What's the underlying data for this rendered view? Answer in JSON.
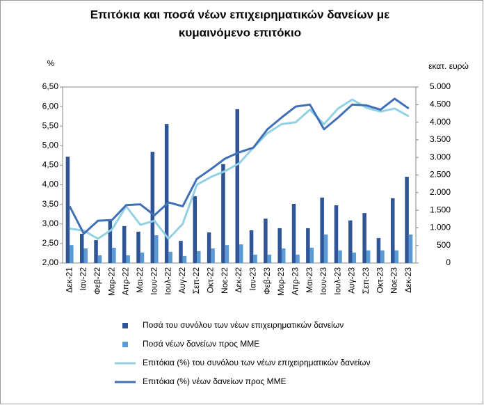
{
  "chart_data": {
    "type": "combo",
    "title": [
      "Επιτόκια και ποσά νέων επιχειρηματικών δανείων με",
      "κυμαινόμενο επιτόκιο"
    ],
    "y_label": "%",
    "y2_label": "εκατ. ευρώ",
    "categories": [
      "Δεκ-21",
      "Ιαν-22",
      "Φεβ-22",
      "Μαρ-22",
      "Απρ-22",
      "Μαι-22",
      "Ιουν-22",
      "Ιουλ-22",
      "Αυγ-22",
      "Σεπ-22",
      "Οκτ-22",
      "Νοε-22",
      "Δεκ-22",
      "Ιαν-23",
      "Φεβ-23",
      "Μαρ-23",
      "Απρ-23",
      "Μαι-23",
      "Ιουν-23",
      "Ιουλ-23",
      "Αυγ-23",
      "Σεπ-23",
      "Οκτ-23",
      "Νοε-23",
      "Δεκ-23"
    ],
    "ylim": [
      2,
      6.5
    ],
    "yticks": [
      {
        "value": 2,
        "label": "2,00"
      },
      {
        "value": 2.5,
        "label": "2,50"
      },
      {
        "value": 3,
        "label": "3,00"
      },
      {
        "value": 3.5,
        "label": "3,50"
      },
      {
        "value": 4,
        "label": "4,00"
      },
      {
        "value": 4.5,
        "label": "4,50"
      },
      {
        "value": 5,
        "label": "5,00"
      },
      {
        "value": 5.5,
        "label": "5,50"
      },
      {
        "value": 6,
        "label": "6,00"
      },
      {
        "value": 6.5,
        "label": "6,50"
      }
    ],
    "y2lim": [
      0,
      5000
    ],
    "y2ticks": [
      0,
      500,
      {
        "value": 1000,
        "label": "1.000"
      },
      {
        "value": 1500,
        "label": "1.500"
      },
      {
        "value": 2000,
        "label": "2.000"
      },
      {
        "value": 2500,
        "label": "2.500"
      },
      {
        "value": 3000,
        "label": "3.000"
      },
      {
        "value": 3500,
        "label": "3.500"
      },
      {
        "value": 4000,
        "label": "4.000"
      },
      {
        "value": 4500,
        "label": "4.500"
      },
      {
        "value": 5000,
        "label": "5.000"
      }
    ],
    "series": [
      {
        "name": "Ποσά του συνόλου των νέων επιχειρηματικών δανείων",
        "type": "bar",
        "axis": "y2",
        "color": "#2f5597",
        "values": [
          3020,
          830,
          650,
          1190,
          1050,
          890,
          3160,
          3950,
          630,
          1900,
          870,
          2810,
          4370,
          930,
          1260,
          990,
          1680,
          990,
          1860,
          1640,
          1210,
          1420,
          710,
          1840,
          2450
        ]
      },
      {
        "name": "Ποσά νέων δανείων προς ΜΜΕ",
        "type": "bar",
        "axis": "y2",
        "color": "#5b9bd5",
        "values": [
          510,
          415,
          220,
          435,
          220,
          300,
          790,
          320,
          200,
          340,
          415,
          510,
          530,
          240,
          240,
          415,
          240,
          435,
          810,
          360,
          300,
          360,
          360,
          360,
          810
        ]
      },
      {
        "name": "Επιτόκια (%) του συνόλου των νέων επιχειρηματικών δανείων",
        "type": "line",
        "color": "#92d1e3",
        "values": [
          2.88,
          2.83,
          2.62,
          2.86,
          3.45,
          2.98,
          3.08,
          2.62,
          3.0,
          4.0,
          4.2,
          4.35,
          4.55,
          4.95,
          5.32,
          5.55,
          5.6,
          5.92,
          5.55,
          5.95,
          6.18,
          5.97,
          5.87,
          5.95,
          5.75
        ]
      },
      {
        "name": "Επιτόκια (%) νέων δανείων προς ΜΜΕ",
        "type": "line",
        "color": "#3f6fb6",
        "values": [
          3.45,
          2.75,
          3.08,
          3.1,
          3.48,
          3.5,
          3.22,
          3.55,
          3.45,
          4.15,
          4.4,
          4.67,
          4.83,
          4.95,
          5.42,
          5.72,
          6.0,
          6.05,
          5.42,
          5.72,
          6.05,
          6.03,
          5.92,
          6.2,
          5.95
        ]
      }
    ]
  }
}
